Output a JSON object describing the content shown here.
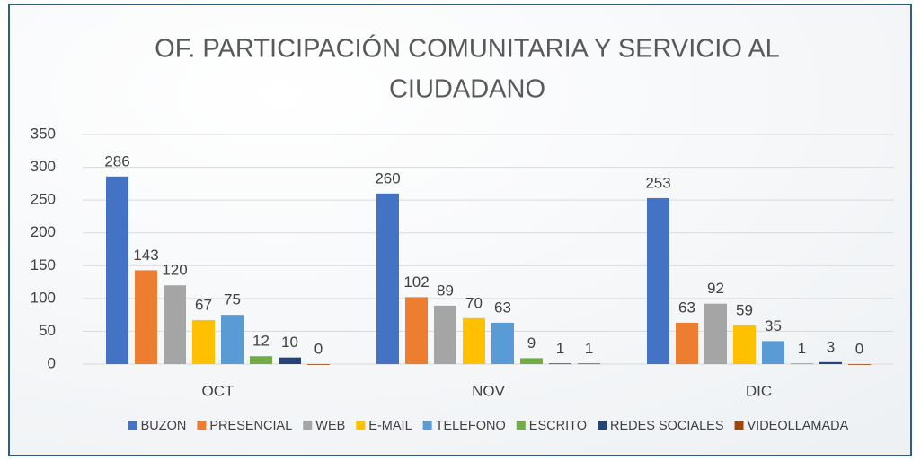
{
  "chart_data": {
    "type": "bar",
    "title": [
      "OF. PARTICIPACIÓN COMUNITARIA Y SERVICIO AL",
      "CIUDADANO"
    ],
    "categories": [
      "OCT",
      "NOV",
      "DIC"
    ],
    "series": [
      {
        "name": "BUZON",
        "color": "#4472c4",
        "values": [
          286,
          260,
          253
        ]
      },
      {
        "name": "PRESENCIAL",
        "color": "#ed7d31",
        "values": [
          143,
          102,
          63
        ]
      },
      {
        "name": "WEB",
        "color": "#a5a5a5",
        "values": [
          120,
          89,
          92
        ]
      },
      {
        "name": "E-MAIL",
        "color": "#ffc000",
        "values": [
          67,
          70,
          59
        ]
      },
      {
        "name": "TELEFONO",
        "color": "#5b9bd5",
        "values": [
          75,
          63,
          35
        ]
      },
      {
        "name": "ESCRITO",
        "color": "#70ad47",
        "values": [
          12,
          9,
          1
        ]
      },
      {
        "name": "REDES SOCIALES",
        "color": "#264478",
        "values": [
          10,
          1,
          3
        ]
      },
      {
        "name": "VIDEOLLAMADA",
        "color": "#9e480e",
        "values": [
          0,
          1,
          0
        ]
      }
    ],
    "ylim": [
      0,
      350
    ],
    "yticks": [
      0,
      50,
      100,
      150,
      200,
      250,
      300,
      350
    ],
    "grid": true,
    "legend": "bottom"
  }
}
